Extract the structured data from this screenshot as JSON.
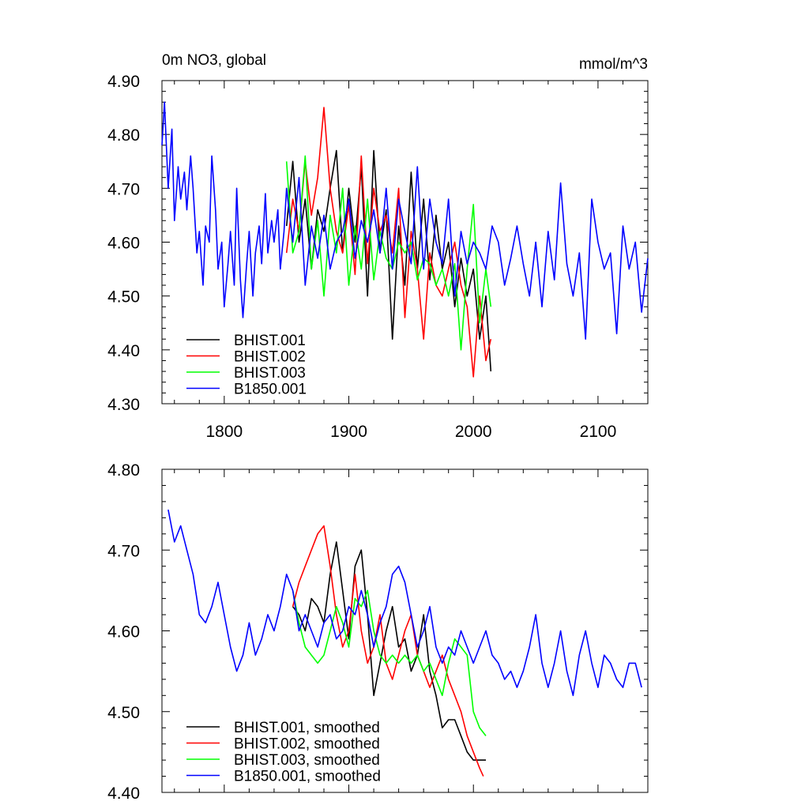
{
  "chart_data": [
    {
      "type": "line",
      "title": "0m NO3, global",
      "units": "mmol/m^3",
      "xlim": [
        1750,
        2140
      ],
      "ylim": [
        4.3,
        4.9
      ],
      "xticks": [
        1800,
        1900,
        2000,
        2100
      ],
      "xtick_labels": [
        "1800",
        "1900",
        "2000",
        "2100"
      ],
      "yticks": [
        4.3,
        4.4,
        4.5,
        4.6,
        4.7,
        4.8,
        4.9
      ],
      "ytick_labels": [
        "4.30",
        "4.40",
        "4.50",
        "4.60",
        "4.70",
        "4.80",
        "4.90"
      ],
      "legend_position": "bottom-left",
      "series": [
        {
          "name": "BHIST.001",
          "color": "#000000",
          "x": [
            1850,
            1855,
            1860,
            1865,
            1870,
            1875,
            1880,
            1885,
            1890,
            1895,
            1900,
            1905,
            1910,
            1915,
            1920,
            1925,
            1930,
            1935,
            1940,
            1945,
            1950,
            1955,
            1960,
            1965,
            1970,
            1975,
            1980,
            1985,
            1990,
            1995,
            2000,
            2005,
            2010,
            2014
          ],
          "values": [
            4.63,
            4.75,
            4.6,
            4.68,
            4.55,
            4.66,
            4.62,
            4.7,
            4.77,
            4.58,
            4.7,
            4.6,
            4.74,
            4.5,
            4.77,
            4.58,
            4.66,
            4.42,
            4.63,
            4.52,
            4.73,
            4.55,
            4.68,
            4.53,
            4.65,
            4.55,
            4.6,
            4.48,
            4.57,
            4.5,
            4.55,
            4.42,
            4.5,
            4.36
          ]
        },
        {
          "name": "BHIST.002",
          "color": "#ff0000",
          "x": [
            1850,
            1855,
            1860,
            1865,
            1870,
            1875,
            1880,
            1885,
            1890,
            1895,
            1900,
            1905,
            1910,
            1915,
            1920,
            1925,
            1930,
            1935,
            1940,
            1945,
            1950,
            1955,
            1960,
            1965,
            1970,
            1975,
            1980,
            1985,
            1990,
            1995,
            2000,
            2005,
            2010,
            2014
          ],
          "values": [
            4.58,
            4.68,
            4.62,
            4.75,
            4.65,
            4.72,
            4.85,
            4.7,
            4.62,
            4.58,
            4.67,
            4.54,
            4.76,
            4.56,
            4.7,
            4.62,
            4.65,
            4.58,
            4.7,
            4.46,
            4.62,
            4.55,
            4.42,
            4.58,
            4.52,
            4.5,
            4.55,
            4.6,
            4.52,
            4.48,
            4.35,
            4.5,
            4.38,
            4.42
          ]
        },
        {
          "name": "BHIST.003",
          "color": "#00ff00",
          "x": [
            1850,
            1855,
            1860,
            1865,
            1870,
            1875,
            1880,
            1885,
            1890,
            1895,
            1900,
            1905,
            1910,
            1915,
            1920,
            1925,
            1930,
            1935,
            1940,
            1945,
            1950,
            1955,
            1960,
            1965,
            1970,
            1975,
            1980,
            1985,
            1990,
            1995,
            2000,
            2005,
            2010,
            2014
          ],
          "values": [
            4.75,
            4.58,
            4.62,
            4.76,
            4.55,
            4.64,
            4.5,
            4.65,
            4.58,
            4.7,
            4.52,
            4.63,
            4.55,
            4.68,
            4.53,
            4.62,
            4.57,
            4.55,
            4.6,
            4.58,
            4.6,
            4.53,
            4.57,
            4.56,
            4.52,
            4.55,
            4.5,
            4.56,
            4.4,
            4.55,
            4.67,
            4.45,
            4.55,
            4.48
          ]
        },
        {
          "name": "B1850.001",
          "color": "#0000ff",
          "x": [
            1750,
            1752,
            1755,
            1758,
            1760,
            1763,
            1765,
            1768,
            1770,
            1773,
            1775,
            1778,
            1780,
            1783,
            1785,
            1788,
            1790,
            1793,
            1795,
            1798,
            1800,
            1803,
            1805,
            1808,
            1810,
            1813,
            1815,
            1818,
            1820,
            1823,
            1825,
            1828,
            1830,
            1833,
            1835,
            1838,
            1840,
            1843,
            1845,
            1848,
            1850,
            1855,
            1860,
            1865,
            1870,
            1875,
            1880,
            1885,
            1890,
            1895,
            1900,
            1905,
            1910,
            1915,
            1920,
            1925,
            1930,
            1935,
            1940,
            1945,
            1950,
            1955,
            1960,
            1965,
            1970,
            1975,
            1980,
            1985,
            1990,
            1995,
            2000,
            2005,
            2010,
            2015,
            2020,
            2025,
            2030,
            2035,
            2040,
            2045,
            2050,
            2055,
            2060,
            2065,
            2070,
            2075,
            2080,
            2085,
            2090,
            2095,
            2100,
            2105,
            2110,
            2115,
            2120,
            2125,
            2130,
            2135,
            2140
          ],
          "values": [
            4.78,
            4.86,
            4.7,
            4.81,
            4.64,
            4.74,
            4.68,
            4.73,
            4.66,
            4.76,
            4.7,
            4.58,
            4.62,
            4.52,
            4.63,
            4.6,
            4.76,
            4.66,
            4.55,
            4.6,
            4.48,
            4.56,
            4.62,
            4.52,
            4.7,
            4.53,
            4.46,
            4.56,
            4.62,
            4.5,
            4.58,
            4.63,
            4.56,
            4.69,
            4.58,
            4.64,
            4.6,
            4.66,
            4.55,
            4.62,
            4.7,
            4.6,
            4.72,
            4.52,
            4.63,
            4.57,
            4.65,
            4.55,
            4.6,
            4.62,
            4.68,
            4.57,
            4.64,
            4.6,
            4.66,
            4.58,
            4.7,
            4.55,
            4.68,
            4.62,
            4.56,
            4.74,
            4.55,
            4.68,
            4.6,
            4.56,
            4.68,
            4.5,
            4.62,
            4.56,
            4.6,
            4.58,
            4.55,
            4.63,
            4.6,
            4.52,
            4.57,
            4.63,
            4.56,
            4.5,
            4.6,
            4.48,
            4.62,
            4.53,
            4.71,
            4.56,
            4.5,
            4.58,
            4.42,
            4.68,
            4.6,
            4.55,
            4.58,
            4.43,
            4.63,
            4.55,
            4.6,
            4.47,
            4.57
          ]
        }
      ]
    },
    {
      "type": "line",
      "title": "",
      "xlim": [
        1750,
        2140
      ],
      "ylim": [
        4.4,
        4.8
      ],
      "yticks": [
        4.4,
        4.5,
        4.6,
        4.7,
        4.8
      ],
      "ytick_labels": [
        "4.40",
        "4.50",
        "4.60",
        "4.70",
        "4.80"
      ],
      "legend_position": "bottom-left",
      "series": [
        {
          "name": "BHIST.001, smoothed",
          "color": "#000000",
          "x": [
            1855,
            1860,
            1865,
            1870,
            1875,
            1880,
            1885,
            1890,
            1895,
            1900,
            1905,
            1910,
            1915,
            1920,
            1925,
            1930,
            1935,
            1940,
            1945,
            1950,
            1955,
            1960,
            1965,
            1970,
            1975,
            1980,
            1985,
            1990,
            1995,
            2000,
            2005,
            2010
          ],
          "values": [
            4.63,
            4.62,
            4.6,
            4.64,
            4.63,
            4.61,
            4.67,
            4.71,
            4.65,
            4.59,
            4.68,
            4.7,
            4.62,
            4.52,
            4.56,
            4.6,
            4.63,
            4.58,
            4.59,
            4.55,
            4.57,
            4.62,
            4.55,
            4.52,
            4.48,
            4.49,
            4.49,
            4.47,
            4.45,
            4.44,
            4.44,
            4.44
          ]
        },
        {
          "name": "BHIST.002, smoothed",
          "color": "#ff0000",
          "x": [
            1855,
            1860,
            1865,
            1870,
            1875,
            1880,
            1885,
            1890,
            1895,
            1900,
            1905,
            1910,
            1915,
            1920,
            1925,
            1930,
            1935,
            1940,
            1945,
            1950,
            1955,
            1960,
            1965,
            1970,
            1975,
            1980,
            1985,
            1990,
            1995,
            2000,
            2005,
            2008
          ],
          "values": [
            4.63,
            4.66,
            4.68,
            4.7,
            4.72,
            4.73,
            4.68,
            4.62,
            4.58,
            4.6,
            4.67,
            4.6,
            4.56,
            4.58,
            4.62,
            4.56,
            4.54,
            4.57,
            4.6,
            4.62,
            4.57,
            4.55,
            4.53,
            4.55,
            4.57,
            4.54,
            4.52,
            4.5,
            4.47,
            4.45,
            4.43,
            4.42
          ]
        },
        {
          "name": "BHIST.003, smoothed",
          "color": "#00ff00",
          "x": [
            1855,
            1860,
            1865,
            1870,
            1875,
            1880,
            1885,
            1890,
            1895,
            1900,
            1905,
            1910,
            1915,
            1920,
            1925,
            1930,
            1935,
            1940,
            1945,
            1950,
            1955,
            1960,
            1965,
            1970,
            1975,
            1980,
            1985,
            1990,
            1995,
            2000,
            2005,
            2010
          ],
          "values": [
            4.65,
            4.61,
            4.58,
            4.57,
            4.56,
            4.57,
            4.6,
            4.63,
            4.61,
            4.58,
            4.64,
            4.63,
            4.65,
            4.6,
            4.57,
            4.56,
            4.57,
            4.56,
            4.57,
            4.56,
            4.57,
            4.55,
            4.56,
            4.54,
            4.52,
            4.56,
            4.59,
            4.58,
            4.57,
            4.5,
            4.48,
            4.47
          ]
        },
        {
          "name": "B1850.001, smoothed",
          "color": "#0000ff",
          "x": [
            1755,
            1760,
            1765,
            1770,
            1775,
            1780,
            1785,
            1790,
            1795,
            1800,
            1805,
            1810,
            1815,
            1820,
            1825,
            1830,
            1835,
            1840,
            1845,
            1850,
            1855,
            1860,
            1865,
            1870,
            1875,
            1880,
            1885,
            1890,
            1895,
            1900,
            1905,
            1910,
            1915,
            1920,
            1925,
            1930,
            1935,
            1940,
            1945,
            1950,
            1955,
            1960,
            1965,
            1970,
            1975,
            1980,
            1985,
            1990,
            1995,
            2000,
            2005,
            2010,
            2015,
            2020,
            2025,
            2030,
            2035,
            2040,
            2045,
            2050,
            2055,
            2060,
            2065,
            2070,
            2075,
            2080,
            2085,
            2090,
            2095,
            2100,
            2105,
            2110,
            2115,
            2120,
            2125,
            2130,
            2135
          ],
          "values": [
            4.75,
            4.71,
            4.73,
            4.7,
            4.67,
            4.62,
            4.61,
            4.63,
            4.66,
            4.62,
            4.58,
            4.55,
            4.57,
            4.61,
            4.57,
            4.59,
            4.62,
            4.6,
            4.63,
            4.67,
            4.65,
            4.6,
            4.62,
            4.6,
            4.58,
            4.61,
            4.62,
            4.59,
            4.6,
            4.63,
            4.62,
            4.65,
            4.62,
            4.58,
            4.61,
            4.63,
            4.67,
            4.68,
            4.66,
            4.62,
            4.58,
            4.6,
            4.63,
            4.58,
            4.56,
            4.58,
            4.57,
            4.6,
            4.58,
            4.56,
            4.58,
            4.6,
            4.57,
            4.56,
            4.54,
            4.55,
            4.53,
            4.55,
            4.58,
            4.62,
            4.56,
            4.53,
            4.56,
            4.6,
            4.55,
            4.52,
            4.57,
            4.6,
            4.56,
            4.53,
            4.57,
            4.56,
            4.54,
            4.53,
            4.56,
            4.56,
            4.53
          ]
        }
      ]
    }
  ]
}
